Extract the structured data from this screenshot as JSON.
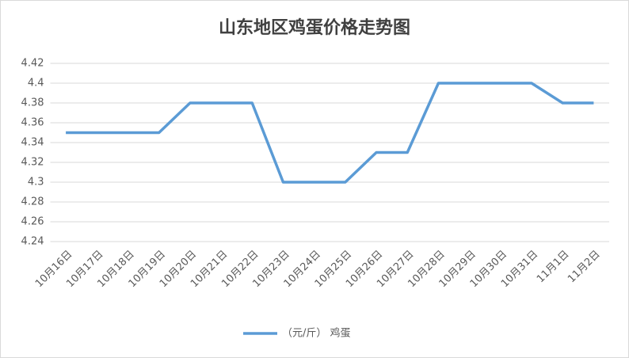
{
  "chart_data": {
    "type": "line",
    "title": "山东地区鸡蛋价格走势图",
    "categories": [
      "10月16日",
      "10月17日",
      "10月18日",
      "10月19日",
      "10月20日",
      "10月21日",
      "10月22日",
      "10月23日",
      "10月24日",
      "10月25日",
      "10月26日",
      "10月27日",
      "10月28日",
      "10月29日",
      "10月30日",
      "10月31日",
      "11月1日",
      "11月2日"
    ],
    "series": [
      {
        "name": "（元/斤） 鸡蛋",
        "color": "#5b9bd5",
        "values": [
          4.35,
          4.35,
          4.35,
          4.35,
          4.38,
          4.38,
          4.38,
          4.3,
          4.3,
          4.3,
          4.33,
          4.33,
          4.4,
          4.4,
          4.4,
          4.4,
          4.38,
          4.38
        ]
      }
    ],
    "ylim": [
      4.24,
      4.42
    ],
    "yticks": [
      4.24,
      4.26,
      4.28,
      4.3,
      4.32,
      4.34,
      4.36,
      4.38,
      4.4,
      4.42
    ],
    "grid": true,
    "legend": "bottom"
  }
}
